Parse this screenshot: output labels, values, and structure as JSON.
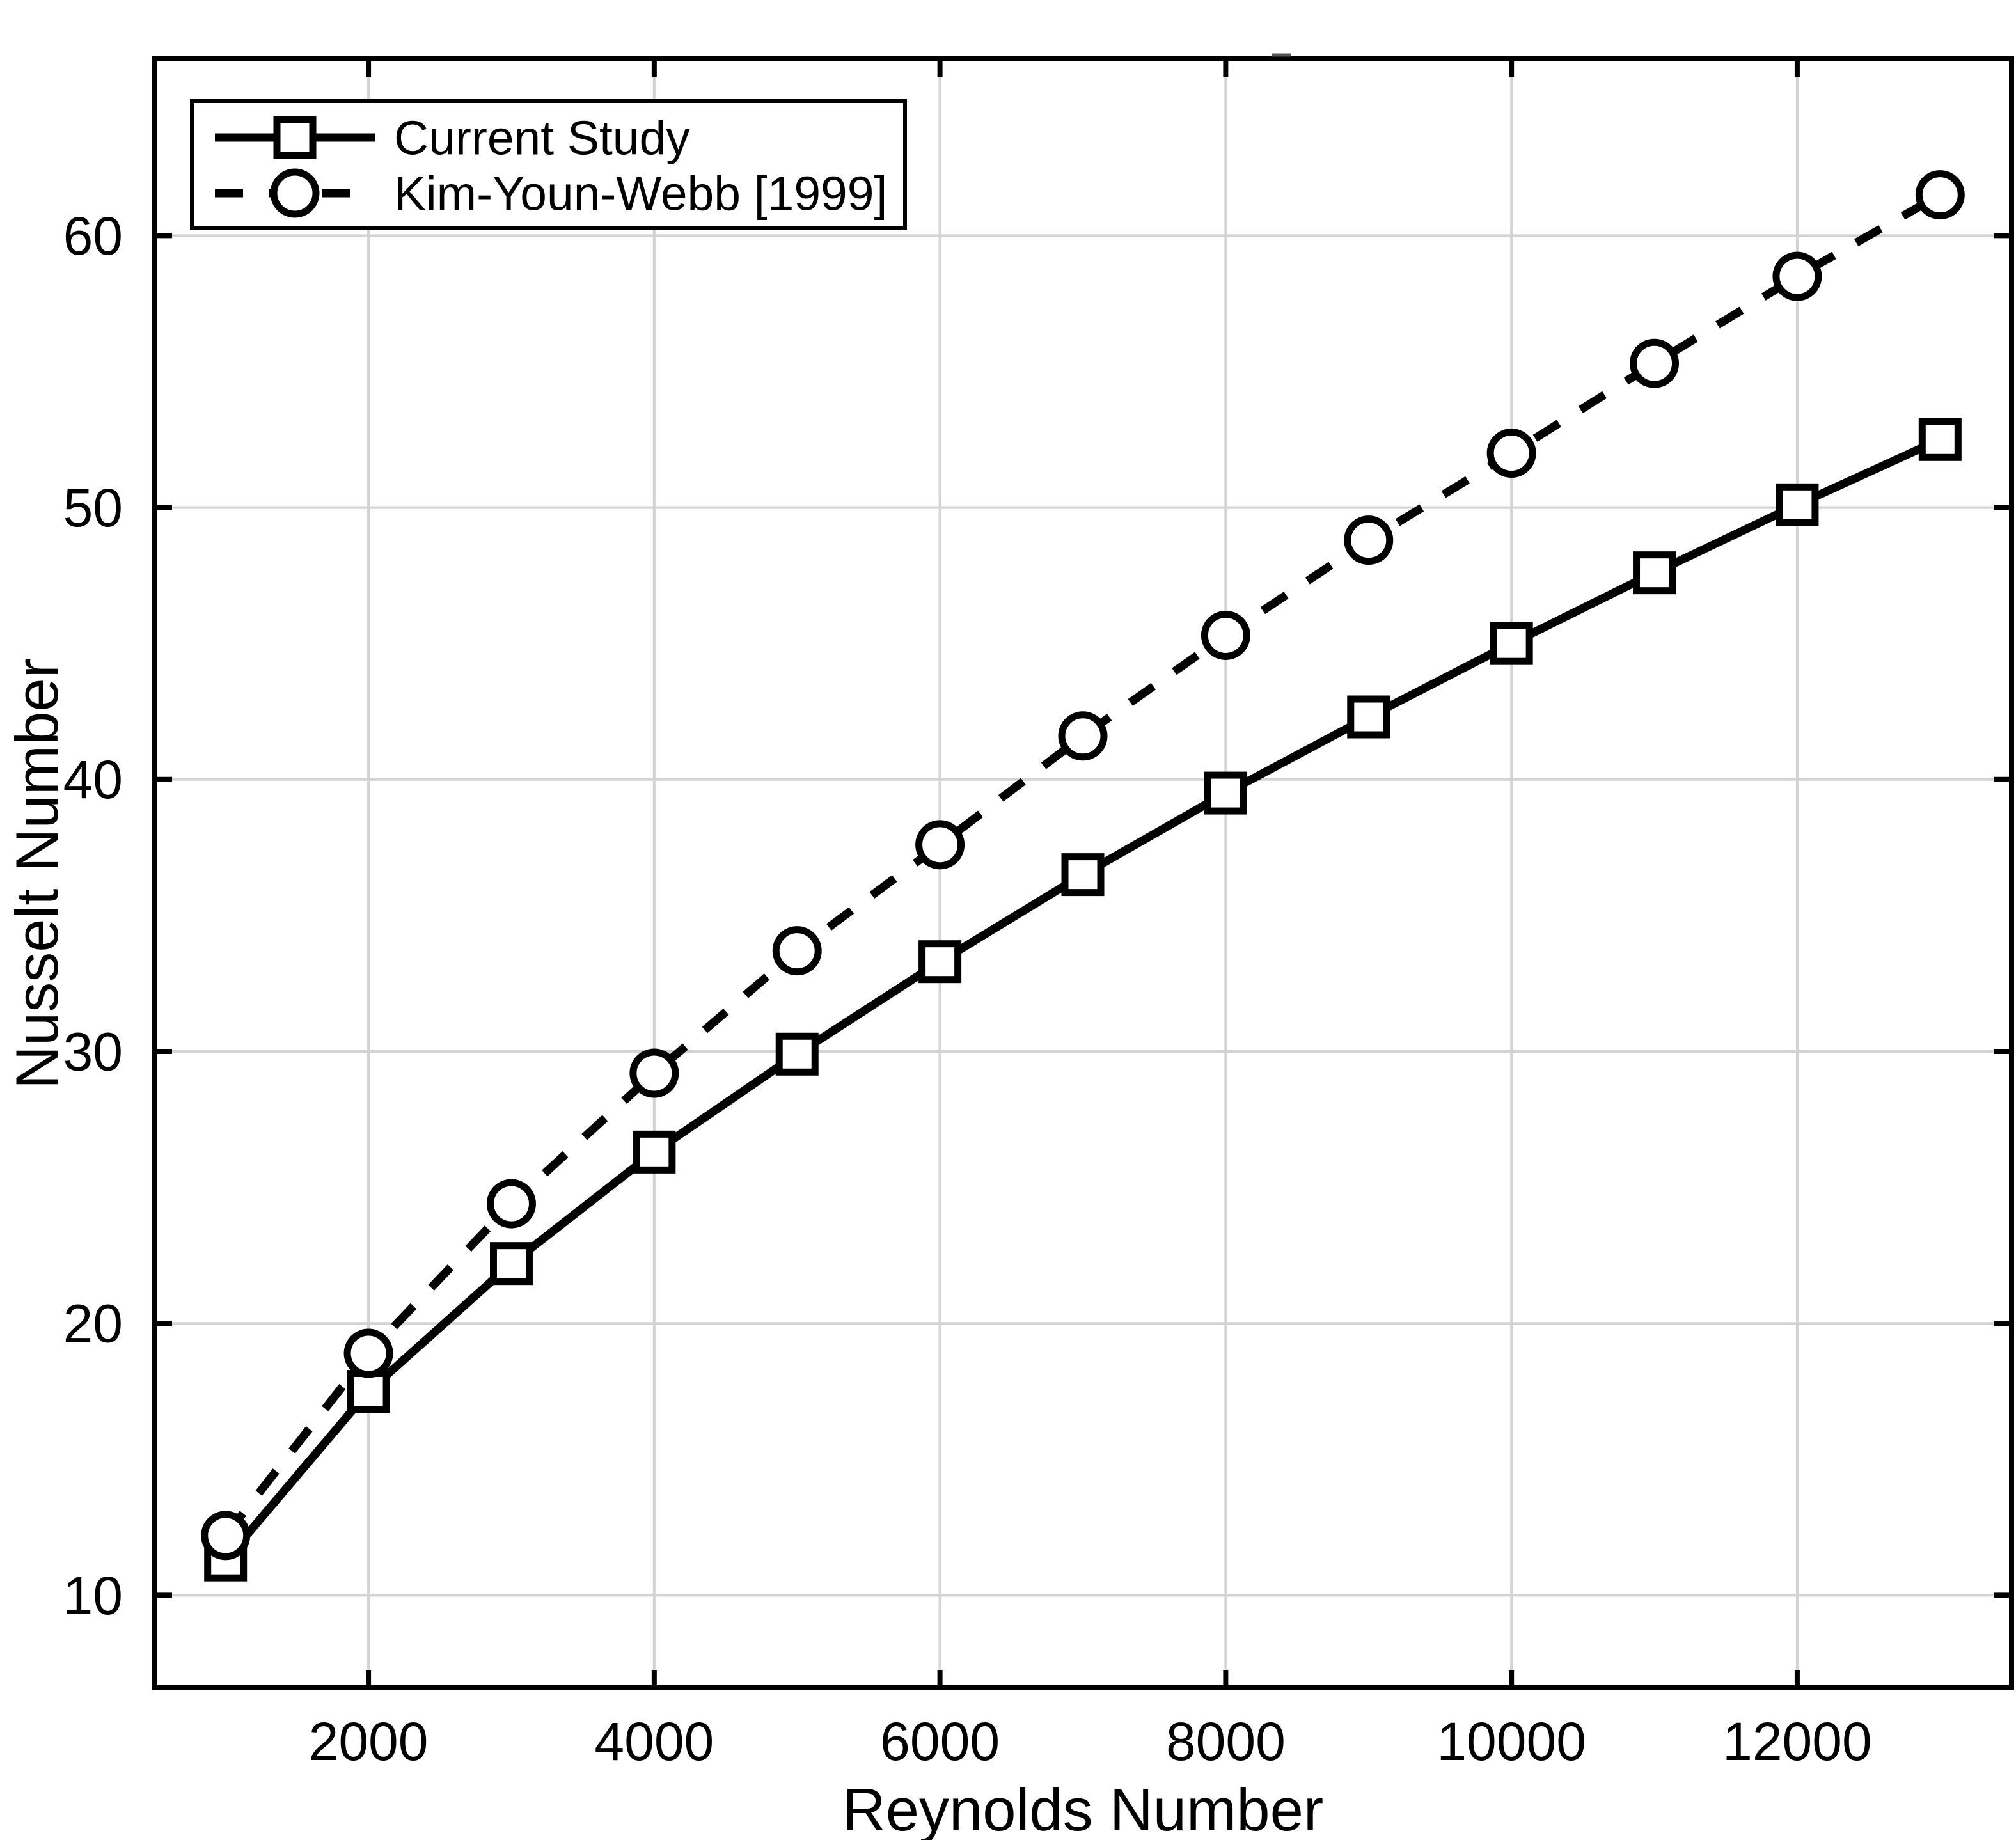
{
  "figure": {
    "background": "#ffffff",
    "chart_data": {
      "type": "line",
      "title": "",
      "xlabel": "Reynolds Number",
      "ylabel": "Nusselt Number",
      "x": [
        1000,
        2000,
        3000,
        4000,
        5000,
        6000,
        7000,
        8000,
        9000,
        10000,
        11000,
        12000,
        13000
      ],
      "series": [
        {
          "name": "Current Study",
          "marker": "square",
          "line_style": "solid",
          "color": "#000000",
          "values": [
            11.3,
            17.5,
            22.2,
            26.3,
            29.9,
            33.3,
            36.5,
            39.5,
            42.3,
            45.0,
            47.6,
            50.1,
            52.5
          ]
        },
        {
          "name": "Kim-Youn-Webb [1999]",
          "marker": "circle",
          "line_style": "dashed",
          "color": "#000000",
          "values": [
            12.2,
            18.9,
            24.4,
            29.2,
            33.7,
            37.6,
            41.6,
            45.3,
            48.8,
            52.0,
            55.3,
            58.5,
            61.5
          ]
        }
      ],
      "xlim": [
        500,
        13500
      ],
      "ylim": [
        6.6,
        66.5
      ],
      "x_ticks": [
        2000,
        4000,
        6000,
        8000,
        10000,
        12000
      ],
      "y_ticks": [
        10,
        20,
        30,
        40,
        50,
        60
      ],
      "grid": true,
      "grid_color": "#d3d3d3",
      "axis_color": "#000000",
      "marker_fill": "#ffffff",
      "legend_position": "top-left",
      "legend_entries": [
        "Current Study",
        "Kim-Youn-Webb [1999]"
      ]
    }
  }
}
